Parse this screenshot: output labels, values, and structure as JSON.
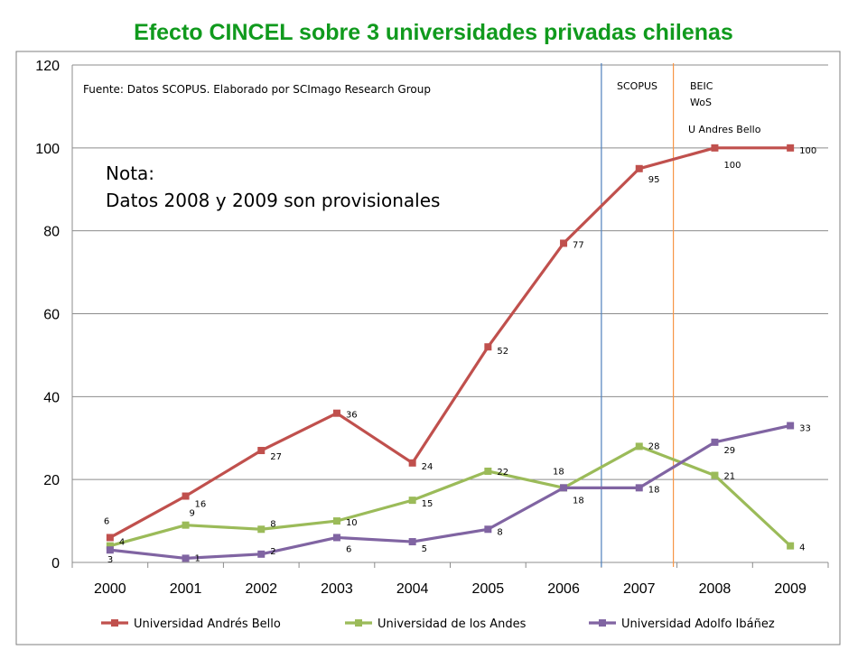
{
  "title": "Efecto CINCEL sobre 3 universidades privadas chilenas",
  "source_note": "Fuente: Datos SCOPUS.  Elaborado por SCImago Research Group",
  "nota_line1": "Nota:",
  "nota_line2": "Datos 2008 y 2009 son provisionales",
  "annotations": {
    "scopus": "SCOPUS",
    "beic_line1": "BEIC",
    "beic_line2": "WoS",
    "u_andres_bello": "U Andres Bello"
  },
  "colors": {
    "andres_bello": "#c0504d",
    "los_andes": "#9bbb59",
    "adolfo_ibanez": "#8064a2",
    "scopus_line": "#4f81bd",
    "beic_line": "#f79646",
    "title": "#109a1d"
  },
  "chart_data": {
    "type": "line",
    "title": "Efecto CINCEL sobre 3 universidades privadas chilenas",
    "categories": [
      "2000",
      "2001",
      "2002",
      "2003",
      "2004",
      "2005",
      "2006",
      "2007",
      "2008",
      "2009"
    ],
    "ylim": [
      0,
      120
    ],
    "yticks": [
      0,
      20,
      40,
      60,
      80,
      100,
      120
    ],
    "grid": true,
    "legend_position": "bottom",
    "series": [
      {
        "name": "Universidad Andrés Bello",
        "color": "#c0504d",
        "values": [
          6,
          16,
          27,
          36,
          24,
          52,
          77,
          95,
          100,
          100
        ],
        "labels": [
          "6",
          "16",
          "27",
          "36",
          "24",
          "52",
          "77",
          "95",
          "100",
          "100"
        ]
      },
      {
        "name": "Universidad de los Andes",
        "color": "#9bbb59",
        "values": [
          4,
          9,
          8,
          10,
          15,
          22,
          18,
          28,
          21,
          4
        ],
        "labels": [
          "4",
          "9",
          "8",
          "10",
          "15",
          "22",
          "18",
          "28",
          "21",
          "4"
        ]
      },
      {
        "name": "Universidad Adolfo Ibáñez",
        "color": "#8064a2",
        "values": [
          3,
          1,
          2,
          6,
          5,
          8,
          18,
          18,
          29,
          33
        ],
        "labels": [
          "3",
          "1",
          "2",
          "6",
          "5",
          "8",
          "18",
          "18",
          "29",
          "33"
        ]
      }
    ],
    "vertical_markers": [
      {
        "between": [
          "2006",
          "2007"
        ],
        "label": "SCOPUS",
        "color": "#4f81bd"
      },
      {
        "between": [
          "2007",
          "2008"
        ],
        "label": "BEIC WoS",
        "color": "#f79646"
      }
    ]
  }
}
